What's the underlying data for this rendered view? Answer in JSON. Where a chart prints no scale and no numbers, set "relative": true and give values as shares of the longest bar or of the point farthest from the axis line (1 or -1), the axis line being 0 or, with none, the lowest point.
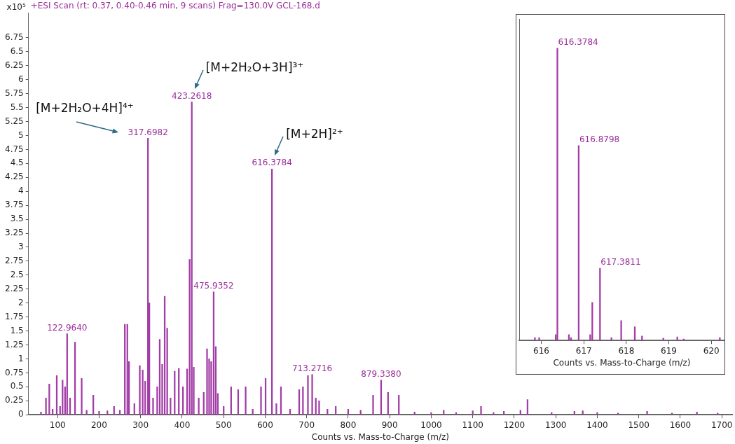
{
  "chart_data": [
    {
      "type": "bar",
      "title": "+ESI Scan (rt: 0.37, 0.40-0.46 min, 9 scans) Frag=130.0V GCL-168.d",
      "xlabel": "Counts vs. Mass-to-Charge (m/z)",
      "ylabel": "x10⁵",
      "color": "#a23ca6",
      "x": [
        60,
        72,
        80,
        88,
        98,
        106,
        112,
        118,
        122.964,
        130,
        142,
        158,
        170,
        186,
        200,
        220,
        236,
        250,
        262,
        268,
        272,
        285,
        298,
        305,
        311,
        317.6982,
        321,
        330,
        340,
        346,
        352,
        358,
        364,
        372,
        382,
        392,
        402,
        412,
        418,
        423.2618,
        428,
        440,
        452,
        460,
        465,
        470,
        475.9352,
        481,
        486,
        500,
        518,
        535,
        553,
        570,
        590,
        601,
        616.3784,
        627,
        638,
        660,
        682,
        691,
        703,
        713.2716,
        722,
        730,
        750,
        770,
        800,
        830,
        860,
        879.338,
        896,
        922,
        960,
        1000,
        1030,
        1060,
        1100,
        1120,
        1150,
        1175,
        1215,
        1232,
        1290,
        1345,
        1365,
        1400,
        1450,
        1520,
        1580,
        1640,
        1690
      ],
      "values": [
        0.05,
        0.3,
        0.55,
        0.1,
        0.7,
        0.15,
        0.62,
        0.5,
        1.45,
        0.3,
        1.3,
        0.65,
        0.08,
        0.35,
        0.06,
        0.07,
        0.15,
        0.08,
        1.62,
        1.62,
        0.95,
        0.2,
        0.88,
        0.8,
        0.6,
        4.95,
        2,
        0.3,
        0.5,
        1.35,
        0.9,
        2.12,
        1.55,
        0.3,
        0.78,
        0.83,
        0.5,
        0.82,
        2.78,
        5.6,
        0.85,
        0.3,
        0.4,
        1.18,
        1,
        0.95,
        2.2,
        1.22,
        0.38,
        0.15,
        0.5,
        0.45,
        0.5,
        0.1,
        0.5,
        0.65,
        4.4,
        0.2,
        0.5,
        0.1,
        0.45,
        0.5,
        0.7,
        0.72,
        0.3,
        0.25,
        0.1,
        0.15,
        0.1,
        0.08,
        0.35,
        0.62,
        0.4,
        0.35,
        0.05,
        0.04,
        0.08,
        0.04,
        0.07,
        0.15,
        0.04,
        0.06,
        0.08,
        0.27,
        0.04,
        0.06,
        0.07,
        0.04,
        0.03,
        0.06,
        0.03,
        0.05,
        0.03
      ],
      "xlim": [
        30,
        1725
      ],
      "xticks": [
        100,
        200,
        300,
        400,
        500,
        600,
        700,
        800,
        900,
        1000,
        1100,
        1200,
        1300,
        1400,
        1500,
        1600,
        1700
      ],
      "ylim": [
        0,
        7.2
      ],
      "yticks": [
        0,
        0.25,
        0.5,
        0.75,
        1,
        1.25,
        1.5,
        1.75,
        2,
        2.25,
        2.5,
        2.75,
        3,
        3.25,
        3.5,
        3.75,
        4,
        4.25,
        4.5,
        4.75,
        5,
        5.25,
        5.5,
        5.75,
        6,
        6.25,
        6.5,
        6.75
      ],
      "annotations": [
        {
          "text": "[M+2H₂O+4H]⁴⁺",
          "x": 317.6982,
          "y": 4.95
        },
        {
          "text": "[M+2H₂O+3H]³⁺",
          "x": 423.2618,
          "y": 5.6
        },
        {
          "text": "[M+2H]²⁺",
          "x": 616.3784,
          "y": 4.4
        },
        {
          "text": "122.9640",
          "x": 122.964,
          "y": 1.45
        },
        {
          "text": "317.6982",
          "x": 317.6982,
          "y": 4.95
        },
        {
          "text": "423.2618",
          "x": 423.2618,
          "y": 5.6
        },
        {
          "text": "475.9352",
          "x": 475.9352,
          "y": 2.2
        },
        {
          "text": "616.3784",
          "x": 616.3784,
          "y": 4.4
        },
        {
          "text": "713.2716",
          "x": 713.2716,
          "y": 0.72
        },
        {
          "text": "879.3380",
          "x": 879.338,
          "y": 0.62
        }
      ]
    },
    {
      "type": "bar",
      "relative": true,
      "tick_labels": "x",
      "xlabel": "Counts vs. Mass-to-Charge (m/z)",
      "color": "#a23ca6",
      "x": [
        615.85,
        615.95,
        616.34,
        616.3784,
        616.65,
        616.7,
        616.8798,
        617.15,
        617.2,
        617.3811,
        617.65,
        617.88,
        618.2,
        618.37,
        618.87,
        619.2,
        619.35,
        620.2
      ],
      "values": [
        0.01,
        0.01,
        0.02,
        1,
        0.02,
        0.01,
        0.667,
        0.02,
        0.13,
        0.247,
        0.01,
        0.068,
        0.047,
        0.015,
        0.008,
        0.012,
        0.005,
        0.01
      ],
      "annotations": [
        {
          "text": "616.3784",
          "x": 616.3784,
          "y": 1
        },
        {
          "text": "616.8798",
          "x": 616.8798,
          "y": 0.667
        },
        {
          "text": "617.3811",
          "x": 617.3811,
          "y": 0.247
        }
      ],
      "xlim": [
        615.48,
        620.31
      ],
      "xticks": [
        616,
        617,
        618,
        619,
        620
      ]
    }
  ]
}
